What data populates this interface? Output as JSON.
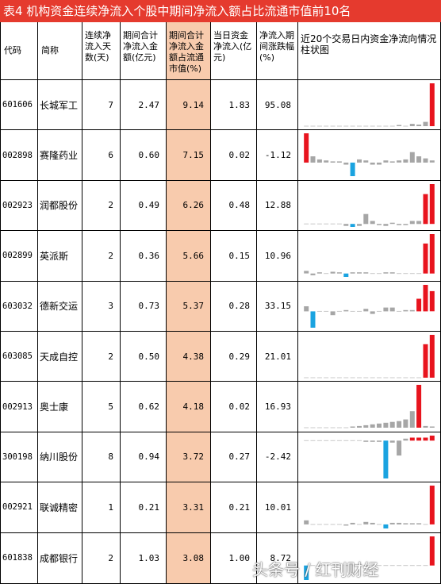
{
  "title": "表4  机构资金连续净流入个股中期间净流入额占比流通市值前10名",
  "headers": {
    "code": "代码",
    "name": "简称",
    "days": "连续净流入天数(天)",
    "amount": "期间合计净流入金额(亿元)",
    "pct": "期间合计净流入金额占流通市值(%)",
    "today": "当日资金净流入(亿元)",
    "change": "净流入期间涨跌幅(%)",
    "chart": "近20个交易日内资金净流向情况柱状图"
  },
  "colors": {
    "title_bg": "#e53a2e",
    "highlight": "#f8cbad",
    "bar_red": "#e8141e",
    "bar_blue": "#1aa3e0",
    "bar_gray": "#a6a6a6"
  },
  "rows": [
    {
      "code": "601606",
      "name": "长城军工",
      "days": "7",
      "amount": "2.47",
      "pct": "9.14",
      "today": "1.83",
      "change": "95.08",
      "bars": [
        0,
        0,
        0,
        0,
        0,
        0,
        0,
        0,
        0,
        0,
        0,
        0,
        0,
        0,
        0.3,
        0,
        0.6,
        0.4,
        1.1,
        11
      ]
    },
    {
      "code": "002898",
      "name": "赛隆药业",
      "days": "6",
      "amount": "0.60",
      "pct": "7.15",
      "today": "0.02",
      "change": "-1.12",
      "bars": [
        2.8,
        0.6,
        0.3,
        0.2,
        0.1,
        0.1,
        -0.2,
        -1.3,
        0.3,
        0.2,
        -0.2,
        -0.2,
        0.2,
        0.1,
        0.2,
        0.3,
        1.0,
        0.6,
        0.4,
        0.2
      ]
    },
    {
      "code": "002923",
      "name": "润都股份",
      "days": "2",
      "amount": "0.49",
      "pct": "6.26",
      "today": "0.48",
      "change": "12.88",
      "bars": [
        0,
        0,
        0,
        0,
        0,
        0,
        -0.2,
        -0.3,
        -0.2,
        1.0,
        0.3,
        -0.1,
        -0.2,
        0.1,
        -0.1,
        -0.1,
        0.3,
        0.3,
        3.0,
        4.0
      ]
    },
    {
      "code": "002899",
      "name": "英派斯",
      "days": "2",
      "amount": "0.36",
      "pct": "5.66",
      "today": "0.15",
      "change": "10.96",
      "bars": [
        0.3,
        -0.2,
        0.1,
        0,
        0.2,
        0.1,
        -0.4,
        0.1,
        0.1,
        0.1,
        0,
        0,
        0.1,
        0.1,
        0,
        0,
        0,
        0,
        3.5,
        4.6
      ]
    },
    {
      "code": "603032",
      "name": "德新交运",
      "days": "3",
      "amount": "0.73",
      "pct": "5.37",
      "today": "0.28",
      "change": "33.15",
      "bars": [
        0.4,
        -1.3,
        0,
        0,
        -0.3,
        0,
        0.1,
        0,
        0,
        0.2,
        -0.2,
        0,
        0.3,
        0.3,
        0,
        0.1,
        0.1,
        1.0,
        2.1,
        1.6
      ]
    },
    {
      "code": "603085",
      "name": "天成自控",
      "days": "2",
      "amount": "0.50",
      "pct": "4.38",
      "today": "0.29",
      "change": "21.01",
      "bars": [
        0,
        0,
        0,
        0,
        0,
        0,
        0,
        0,
        0,
        0,
        0,
        0,
        0,
        0,
        0,
        0,
        0,
        0,
        2.5,
        3.2
      ]
    },
    {
      "code": "002913",
      "name": "奥士康",
      "days": "5",
      "amount": "0.62",
      "pct": "4.18",
      "today": "0.02",
      "change": "16.93",
      "bars": [
        0,
        0,
        0,
        0,
        0,
        0,
        0,
        0.1,
        0.2,
        0.3,
        0.4,
        0.5,
        0.6,
        0.7,
        0.8,
        1.0,
        2.0,
        5.2,
        0.2,
        0.1
      ]
    },
    {
      "code": "300198",
      "name": "纳川股份",
      "days": "8",
      "amount": "0.94",
      "pct": "3.72",
      "today": "0.27",
      "change": "-2.42",
      "bars": [
        0,
        0,
        0,
        0,
        0,
        0,
        0,
        0,
        0,
        -0.1,
        -0.1,
        -0.1,
        -3.8,
        -0.2,
        -1.5,
        0.2,
        0.3,
        0.3,
        0.3,
        0.5
      ]
    },
    {
      "code": "002921",
      "name": "联诚精密",
      "days": "1",
      "amount": "0.21",
      "pct": "3.31",
      "today": "0.21",
      "change": "10.01",
      "bars": [
        0.5,
        0,
        0,
        0,
        0,
        0,
        -0.1,
        0.2,
        0,
        0.3,
        0.2,
        0,
        -0.5,
        0.2,
        0.2,
        0.1,
        0.1,
        0.1,
        0,
        4.8
      ]
    },
    {
      "code": "601838",
      "name": "成都银行",
      "days": "2",
      "amount": "1.03",
      "pct": "3.08",
      "today": "1.00",
      "change": "8.72",
      "bars": [
        -1.5,
        0,
        0,
        0,
        0,
        0,
        0,
        0,
        0,
        0,
        0,
        0,
        0,
        0,
        0,
        0,
        0,
        0,
        0,
        3.0
      ]
    }
  ],
  "watermark": "头条号 / 红刊财经"
}
